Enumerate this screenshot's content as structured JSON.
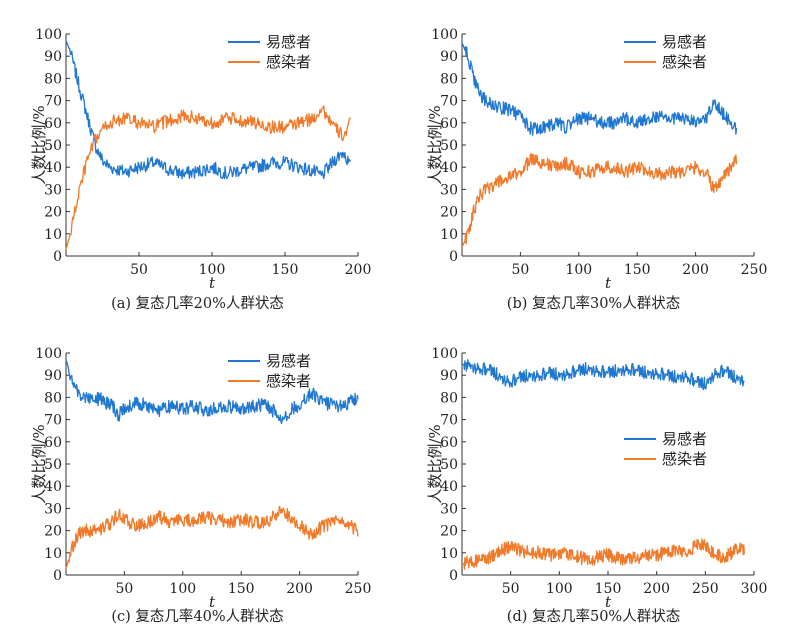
{
  "chart_data": [
    {
      "type": "line",
      "caption": "(a) 复态几率20%人群状态",
      "xlabel": "t",
      "ylabel": "人数比例/%",
      "xlim": [
        0,
        200
      ],
      "ylim": [
        0,
        100
      ],
      "xticks": [
        50,
        100,
        150,
        200
      ],
      "yticks": [
        0,
        10,
        20,
        30,
        40,
        50,
        60,
        70,
        80,
        90,
        100
      ],
      "legend_position": "top-right",
      "series": [
        {
          "name": "易感者",
          "color": "#1f77d0",
          "x": [
            0,
            3,
            6,
            10,
            15,
            20,
            25,
            30,
            40,
            50,
            60,
            70,
            80,
            90,
            100,
            110,
            120,
            130,
            140,
            150,
            160,
            170,
            175,
            180,
            185,
            190,
            195
          ],
          "y": [
            97,
            92,
            84,
            74,
            62,
            50,
            43,
            40,
            38,
            40,
            42,
            39,
            37,
            38,
            40,
            37,
            39,
            40,
            42,
            42,
            40,
            38,
            36,
            40,
            44,
            47,
            40
          ]
        },
        {
          "name": "感染者",
          "color": "#f07a2a",
          "x": [
            0,
            3,
            6,
            10,
            15,
            20,
            25,
            30,
            40,
            50,
            60,
            70,
            80,
            90,
            100,
            110,
            120,
            130,
            140,
            150,
            160,
            170,
            175,
            180,
            185,
            190,
            195
          ],
          "y": [
            3,
            10,
            20,
            32,
            44,
            52,
            57,
            60,
            62,
            60,
            58,
            61,
            63,
            62,
            60,
            62,
            61,
            60,
            58,
            58,
            60,
            62,
            67,
            62,
            57,
            54,
            60
          ]
        }
      ]
    },
    {
      "type": "line",
      "caption": "(b) 复态几率30%人群状态",
      "xlabel": "t",
      "ylabel": "人数比例/%",
      "xlim": [
        0,
        250
      ],
      "ylim": [
        0,
        100
      ],
      "xticks": [
        50,
        100,
        150,
        200,
        250
      ],
      "yticks": [
        0,
        10,
        20,
        30,
        40,
        50,
        60,
        70,
        80,
        90,
        100
      ],
      "legend_position": "top-right",
      "series": [
        {
          "name": "易感者",
          "color": "#1f77d0",
          "x": [
            0,
            5,
            10,
            15,
            20,
            30,
            40,
            50,
            60,
            70,
            80,
            90,
            100,
            110,
            120,
            130,
            140,
            150,
            160,
            170,
            180,
            190,
            200,
            210,
            215,
            220,
            225,
            230,
            235
          ],
          "y": [
            96,
            90,
            80,
            73,
            70,
            67,
            66,
            63,
            57,
            58,
            60,
            58,
            62,
            62,
            60,
            60,
            62,
            60,
            62,
            63,
            62,
            62,
            60,
            63,
            70,
            67,
            63,
            60,
            57
          ]
        },
        {
          "name": "感染者",
          "color": "#f07a2a",
          "x": [
            0,
            5,
            10,
            15,
            20,
            30,
            40,
            50,
            60,
            70,
            80,
            90,
            100,
            110,
            120,
            130,
            140,
            150,
            160,
            170,
            180,
            190,
            200,
            210,
            215,
            220,
            225,
            230,
            235
          ],
          "y": [
            4,
            10,
            20,
            27,
            30,
            33,
            35,
            38,
            44,
            42,
            40,
            42,
            38,
            38,
            40,
            40,
            38,
            40,
            38,
            37,
            38,
            38,
            40,
            37,
            30,
            33,
            37,
            40,
            43
          ]
        }
      ]
    },
    {
      "type": "line",
      "caption": "(c) 复态几率40%人群状态",
      "xlabel": "t",
      "ylabel": "人数比例/%",
      "xlim": [
        0,
        250
      ],
      "ylim": [
        0,
        100
      ],
      "xticks": [
        50,
        100,
        150,
        200,
        250
      ],
      "yticks": [
        0,
        10,
        20,
        30,
        40,
        50,
        60,
        70,
        80,
        90,
        100
      ],
      "legend_position": "top-right",
      "series": [
        {
          "name": "易感者",
          "color": "#1f77d0",
          "x": [
            0,
            5,
            10,
            15,
            20,
            30,
            40,
            45,
            50,
            60,
            70,
            80,
            90,
            100,
            110,
            120,
            130,
            140,
            150,
            160,
            170,
            180,
            185,
            190,
            200,
            210,
            220,
            230,
            240,
            250
          ],
          "y": [
            97,
            88,
            82,
            80,
            80,
            79,
            76,
            72,
            75,
            78,
            76,
            74,
            76,
            75,
            76,
            74,
            75,
            76,
            75,
            76,
            77,
            73,
            70,
            73,
            77,
            82,
            78,
            76,
            77,
            80
          ]
        },
        {
          "name": "感染者",
          "color": "#f07a2a",
          "x": [
            0,
            5,
            10,
            15,
            20,
            30,
            40,
            45,
            50,
            60,
            70,
            80,
            90,
            100,
            110,
            120,
            130,
            140,
            150,
            160,
            170,
            180,
            185,
            190,
            200,
            210,
            220,
            230,
            240,
            250
          ],
          "y": [
            3,
            12,
            18,
            20,
            20,
            21,
            24,
            28,
            25,
            22,
            24,
            26,
            24,
            25,
            24,
            26,
            25,
            24,
            25,
            24,
            23,
            27,
            30,
            27,
            23,
            18,
            22,
            24,
            23,
            20
          ]
        }
      ]
    },
    {
      "type": "line",
      "caption": "(d) 复态几率50%人群状态",
      "xlabel": "t",
      "ylabel": "人数比例/%",
      "xlim": [
        0,
        300
      ],
      "ylim": [
        0,
        100
      ],
      "xticks": [
        50,
        100,
        150,
        200,
        250,
        300
      ],
      "yticks": [
        0,
        10,
        20,
        30,
        40,
        50,
        60,
        70,
        80,
        90,
        100
      ],
      "legend_position": "center-right",
      "series": [
        {
          "name": "易感者",
          "color": "#1f77d0",
          "x": [
            0,
            10,
            20,
            30,
            40,
            50,
            60,
            70,
            80,
            90,
            100,
            110,
            120,
            130,
            140,
            150,
            160,
            170,
            180,
            190,
            200,
            210,
            220,
            230,
            240,
            250,
            260,
            270,
            280,
            290
          ],
          "y": [
            95,
            94,
            93,
            92,
            89,
            87,
            89,
            90,
            90,
            91,
            90,
            91,
            92,
            93,
            92,
            91,
            92,
            93,
            92,
            91,
            91,
            90,
            89,
            90,
            87,
            86,
            91,
            92,
            89,
            88
          ]
        },
        {
          "name": "感染者",
          "color": "#f07a2a",
          "x": [
            0,
            10,
            20,
            30,
            40,
            50,
            60,
            70,
            80,
            90,
            100,
            110,
            120,
            130,
            140,
            150,
            160,
            170,
            180,
            190,
            200,
            210,
            220,
            230,
            240,
            250,
            260,
            270,
            280,
            290
          ],
          "y": [
            5,
            6,
            7,
            8,
            11,
            13,
            11,
            10,
            10,
            9,
            10,
            9,
            8,
            7,
            8,
            9,
            8,
            7,
            8,
            9,
            9,
            10,
            11,
            10,
            13,
            14,
            9,
            8,
            11,
            12
          ]
        }
      ]
    }
  ]
}
